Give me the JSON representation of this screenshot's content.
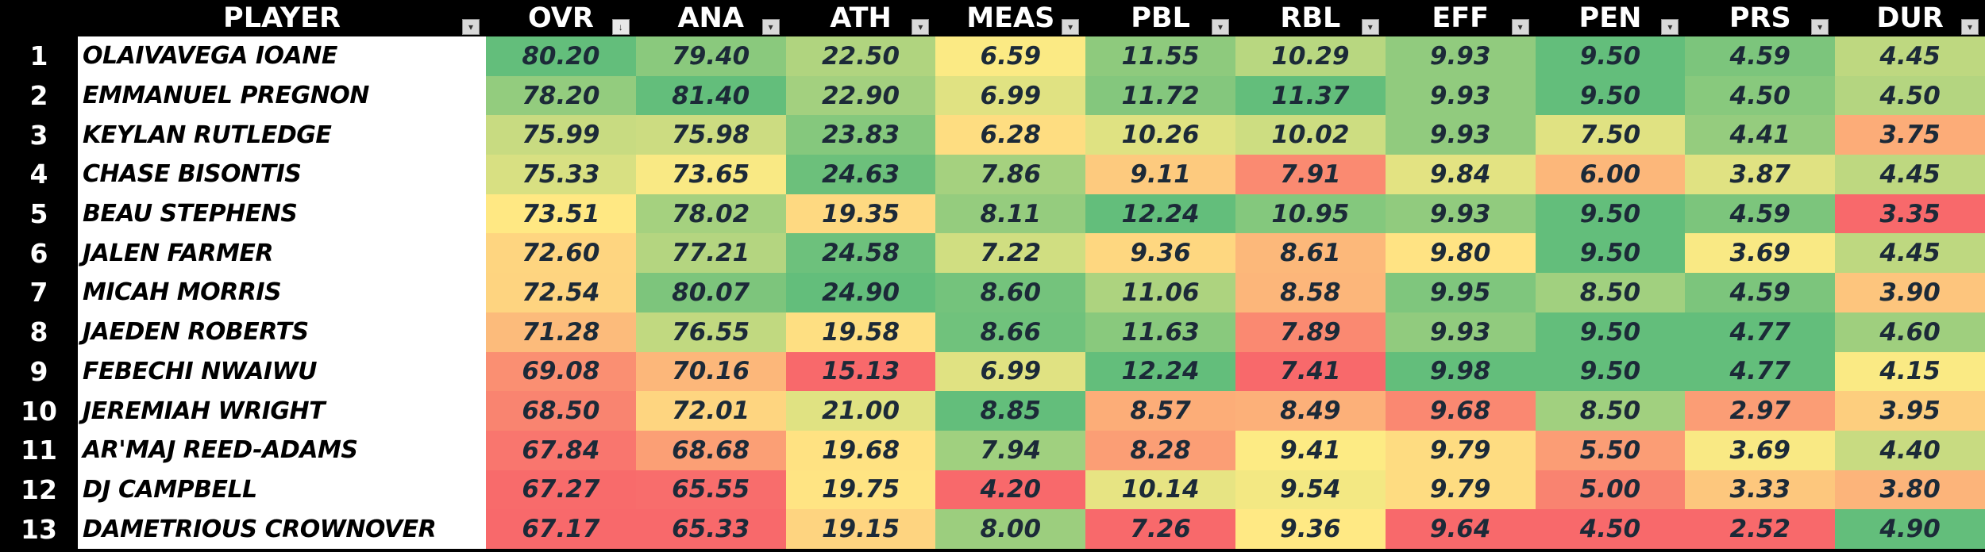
{
  "headers": {
    "rank": "",
    "player": "PLAYER",
    "stats": [
      "OVR",
      "ANA",
      "ATH",
      "MEAS",
      "PBL",
      "RBL",
      "EFF",
      "PEN",
      "PRS",
      "DUR"
    ]
  },
  "filter_icons": {
    "default": "dropdown-arrow-icon",
    "sorted": "sort-descending-icon",
    "sorted_column": "OVR"
  },
  "color_scale": {
    "high": "#63be7b",
    "mid": "#ffeb84",
    "low": "#f8696b"
  },
  "rows": [
    {
      "rank": "1",
      "player": "OLAIVAVEGA IOANE",
      "values": [
        "80.20",
        "79.40",
        "22.50",
        "6.59",
        "11.55",
        "10.29",
        "9.93",
        "9.50",
        "4.59",
        "4.45"
      ]
    },
    {
      "rank": "2",
      "player": "EMMANUEL PREGNON",
      "values": [
        "78.20",
        "81.40",
        "22.90",
        "6.99",
        "11.72",
        "11.37",
        "9.93",
        "9.50",
        "4.50",
        "4.50"
      ]
    },
    {
      "rank": "3",
      "player": "KEYLAN RUTLEDGE",
      "values": [
        "75.99",
        "75.98",
        "23.83",
        "6.28",
        "10.26",
        "10.02",
        "9.93",
        "7.50",
        "4.41",
        "3.75"
      ]
    },
    {
      "rank": "4",
      "player": "CHASE BISONTIS",
      "values": [
        "75.33",
        "73.65",
        "24.63",
        "7.86",
        "9.11",
        "7.91",
        "9.84",
        "6.00",
        "3.87",
        "4.45"
      ]
    },
    {
      "rank": "5",
      "player": "BEAU STEPHENS",
      "values": [
        "73.51",
        "78.02",
        "19.35",
        "8.11",
        "12.24",
        "10.95",
        "9.93",
        "9.50",
        "4.59",
        "3.35"
      ]
    },
    {
      "rank": "6",
      "player": "JALEN FARMER",
      "values": [
        "72.60",
        "77.21",
        "24.58",
        "7.22",
        "9.36",
        "8.61",
        "9.80",
        "9.50",
        "3.69",
        "4.45"
      ]
    },
    {
      "rank": "7",
      "player": "MICAH MORRIS",
      "values": [
        "72.54",
        "80.07",
        "24.90",
        "8.60",
        "11.06",
        "8.58",
        "9.95",
        "8.50",
        "4.59",
        "3.90"
      ]
    },
    {
      "rank": "8",
      "player": "JAEDEN ROBERTS",
      "values": [
        "71.28",
        "76.55",
        "19.58",
        "8.66",
        "11.63",
        "7.89",
        "9.93",
        "9.50",
        "4.77",
        "4.60"
      ]
    },
    {
      "rank": "9",
      "player": "FEBECHI NWAIWU",
      "values": [
        "69.08",
        "70.16",
        "15.13",
        "6.99",
        "12.24",
        "7.41",
        "9.98",
        "9.50",
        "4.77",
        "4.15"
      ]
    },
    {
      "rank": "10",
      "player": "JEREMIAH WRIGHT",
      "values": [
        "68.50",
        "72.01",
        "21.00",
        "8.85",
        "8.57",
        "8.49",
        "9.68",
        "8.50",
        "2.97",
        "3.95"
      ]
    },
    {
      "rank": "11",
      "player": "AR'MAJ REED-ADAMS",
      "values": [
        "67.84",
        "68.68",
        "19.68",
        "7.94",
        "8.28",
        "9.41",
        "9.79",
        "5.50",
        "3.69",
        "4.40"
      ]
    },
    {
      "rank": "12",
      "player": "DJ CAMPBELL",
      "values": [
        "67.27",
        "65.55",
        "19.75",
        "4.20",
        "10.14",
        "9.54",
        "9.79",
        "5.00",
        "3.33",
        "3.80"
      ]
    },
    {
      "rank": "13",
      "player": "DAMETRIOUS CROWNOVER",
      "values": [
        "67.17",
        "65.33",
        "19.15",
        "8.00",
        "7.26",
        "9.36",
        "9.64",
        "4.50",
        "2.52",
        "4.90"
      ]
    }
  ]
}
